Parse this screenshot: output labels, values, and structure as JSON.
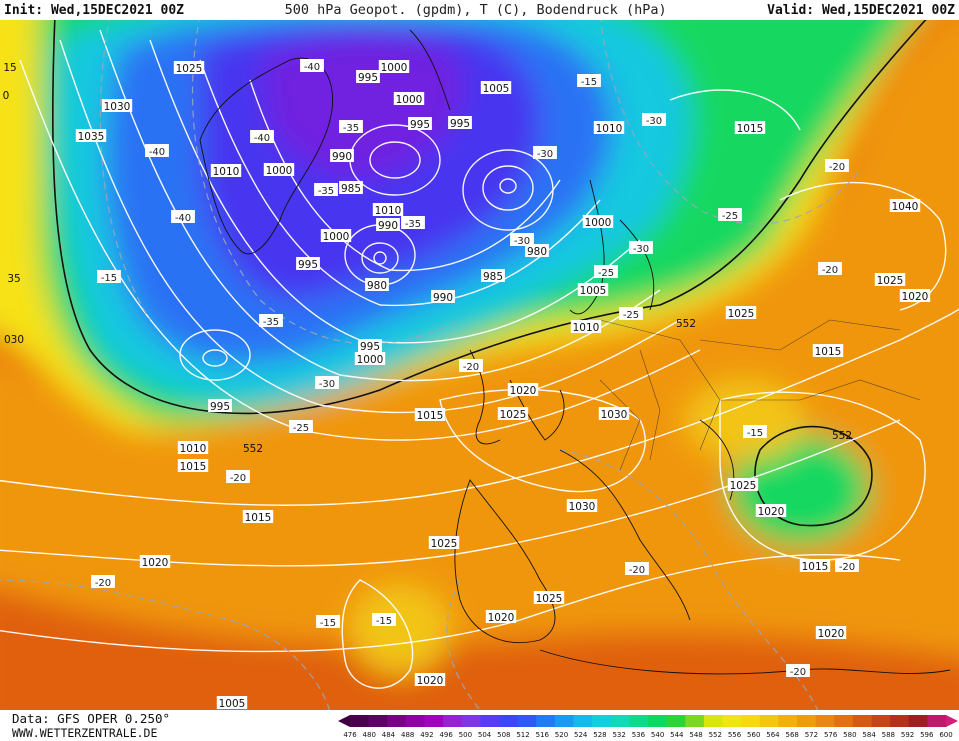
{
  "header": {
    "init": "Init: Wed,15DEC2021 00Z",
    "title": "500 hPa Geopot. (gpdm), T (C), Bodendruck (hPa)",
    "valid": "Valid: Wed,15DEC2021 00Z"
  },
  "footer": {
    "data_source": "Data: GFS OPER 0.250°",
    "website": "WWW.WETTERZENTRALE.DE"
  },
  "legend": {
    "values": [
      476,
      480,
      484,
      488,
      492,
      496,
      500,
      504,
      508,
      512,
      516,
      520,
      524,
      528,
      532,
      536,
      540,
      544,
      548,
      552,
      556,
      560,
      564,
      568,
      572,
      576,
      580,
      584,
      588,
      592,
      596,
      600
    ],
    "colors": [
      "#4b004f",
      "#5e0068",
      "#7a0088",
      "#9000a6",
      "#a400c0",
      "#9a20d8",
      "#7f35e8",
      "#5a3cf0",
      "#3c46f2",
      "#2a5cf4",
      "#1f7bf6",
      "#189bf4",
      "#16b8ee",
      "#15cce0",
      "#14d8b8",
      "#12d88c",
      "#10d85e",
      "#2ad636",
      "#7ad81e",
      "#d8e610",
      "#f0e414",
      "#f6d816",
      "#f6c414",
      "#f4ae12",
      "#f09a10",
      "#ec8610",
      "#e4700e",
      "#d85a10",
      "#c84416",
      "#b4301a",
      "#a01e20",
      "#c0186a"
    ]
  },
  "isobar_labels": [
    "1025",
    "1030",
    "1035",
    "995",
    "1000",
    "1000",
    "1005",
    "995",
    "995",
    "1010",
    "1000",
    "990",
    "985",
    "1010",
    "990",
    "1000",
    "995",
    "980",
    "990",
    "980",
    "985",
    "1000",
    "1010",
    "1005",
    "1010",
    "1015",
    "1040",
    "1025",
    "1020",
    "1025",
    "1015",
    "1020",
    "1030",
    "1025",
    "1015",
    "1025",
    "1030",
    "1025",
    "1015",
    "1020",
    "1025",
    "1020",
    "1020",
    "1015",
    "1020",
    "1020",
    "1005",
    "1010",
    "1015",
    "995",
    "995",
    "1000"
  ],
  "temperature_labels": [
    "-40",
    "-40",
    "-35",
    "-40",
    "-40",
    "-35",
    "-35",
    "-35",
    "-30",
    "-30",
    "-30",
    "-30",
    "-30",
    "-25",
    "-25",
    "-25",
    "-25",
    "-20",
    "-20",
    "-20",
    "-20",
    "-20",
    "-20",
    "-20",
    "-15",
    "-15",
    "-15",
    "-20",
    "-20",
    "-15",
    "-15"
  ],
  "height_labels": [
    "552",
    "552",
    "552"
  ],
  "edge_labels": [
    "15",
    "35",
    "030",
    "0"
  ]
}
